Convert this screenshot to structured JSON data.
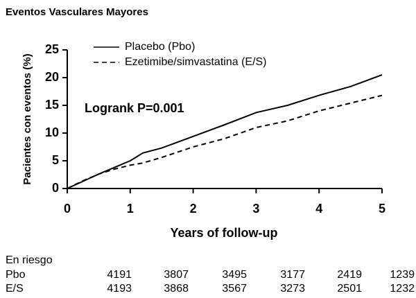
{
  "chart_data": {
    "type": "line",
    "title": "Eventos Vasculares Mayores",
    "y_label": "Pacientes con eventos (%)",
    "x_label": "Years of follow-up",
    "annotation": "Logrank  P=0.001",
    "x": [
      0,
      0.25,
      0.5,
      0.75,
      1,
      1.2,
      1.5,
      2,
      2.5,
      3,
      3.5,
      4,
      4.5,
      5
    ],
    "series": [
      {
        "name": "Placebo (Pbo)",
        "color": "#000000",
        "dash": "solid",
        "values": [
          0,
          1.3,
          2.6,
          3.8,
          5,
          6.4,
          7.3,
          9.4,
          11.5,
          13.7,
          15,
          16.8,
          18.4,
          20.5
        ]
      },
      {
        "name": "Ezetimibe/simvastatina (E/S)",
        "color": "#000000",
        "dash": "dashed",
        "values": [
          0,
          1.4,
          2.6,
          3.5,
          4.2,
          4.6,
          5.6,
          7.5,
          9,
          11,
          12.2,
          14,
          15.4,
          16.8
        ]
      }
    ],
    "xlim": [
      0,
      5
    ],
    "xticks": [
      0,
      1,
      2,
      3,
      4,
      5
    ],
    "ylim": [
      0,
      25
    ],
    "yticks": [
      0,
      5,
      10,
      15,
      20,
      25
    ],
    "grid": false
  },
  "risk_table": {
    "title": "En riesgo",
    "rows": [
      {
        "label": "Pbo",
        "values": [
          4191,
          3807,
          3495,
          3177,
          2419,
          1239
        ]
      },
      {
        "label": "E/S",
        "values": [
          4193,
          3868,
          3567,
          3273,
          2501,
          1232
        ]
      }
    ]
  }
}
